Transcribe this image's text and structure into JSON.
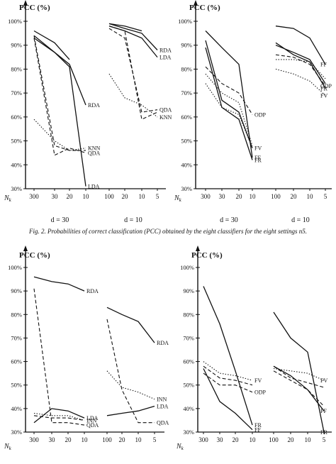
{
  "caption": "Fig. 2.  Probabilities of correct classification (PCC) obtained by the eight classifiers for the eight settings n5.",
  "chart_data": [
    {
      "type": "line",
      "id": "top-left",
      "ylabel": "PCC (%)",
      "xlabel": "N_k",
      "yticks": [
        "30%",
        "40%",
        "50%",
        "60%",
        "70%",
        "80%",
        "90%",
        "100%"
      ],
      "ylim": [
        30,
        100
      ],
      "panels": [
        {
          "label": "d = 30",
          "categories": [
            "300",
            "30",
            "20",
            "10"
          ],
          "series": [
            {
              "name": "",
              "style": "solid",
              "values": [
                96,
                91,
                84,
                null
              ]
            },
            {
              "name": "RDA",
              "style": "solid",
              "values": [
                94,
                87,
                82,
                65
              ]
            },
            {
              "name": "LDA",
              "style": "solid",
              "values": [
                93,
                87,
                81,
                31
              ]
            },
            {
              "name": "",
              "style": "dashed",
              "values": [
                94,
                48,
                46,
                46
              ]
            },
            {
              "name": "QDA",
              "style": "dashed",
              "values": [
                93,
                44,
                47,
                45
              ]
            },
            {
              "name": "KNN",
              "style": "dotted",
              "values": [
                59,
                50,
                46,
                47
              ]
            }
          ]
        },
        {
          "label": "d = 10",
          "categories": [
            "100",
            "20",
            "10",
            "5"
          ],
          "series": [
            {
              "name": "",
              "style": "solid",
              "values": [
                99,
                98,
                96,
                null
              ]
            },
            {
              "name": "RDA",
              "style": "solid",
              "values": [
                99,
                97,
                95,
                88
              ]
            },
            {
              "name": "LDA",
              "style": "solid",
              "values": [
                98,
                96,
                93,
                85
              ]
            },
            {
              "name": "",
              "style": "dashed",
              "values": [
                98,
                96,
                59,
                62
              ]
            },
            {
              "name": "QDA",
              "style": "dashed",
              "values": [
                97,
                93,
                62,
                63
              ]
            },
            {
              "name": "KNN",
              "style": "dotted",
              "values": [
                78,
                68,
                65,
                60
              ]
            }
          ]
        }
      ]
    },
    {
      "type": "line",
      "id": "top-right",
      "ylabel": "PCC (%)",
      "xlabel": "N_k",
      "yticks": [
        "30%",
        "40%",
        "50%",
        "60%",
        "70%",
        "80%",
        "90%",
        "100%"
      ],
      "ylim": [
        30,
        100
      ],
      "panels": [
        {
          "label": "d = 30",
          "categories": [
            "300",
            "30",
            "20",
            "10"
          ],
          "series": [
            {
              "name": "FF",
              "style": "solid",
              "values": [
                96,
                89,
                82,
                43
              ]
            },
            {
              "name": "FR",
              "style": "solid",
              "values": [
                89,
                64,
                59,
                42
              ]
            },
            {
              "name": "",
              "style": "solid",
              "values": [
                92,
                67,
                62,
                47
              ]
            },
            {
              "name": "FV",
              "style": "dotted",
              "values": [
                74,
                64,
                61,
                47
              ]
            },
            {
              "name": "ODP",
              "style": "dashed",
              "values": [
                81,
                74,
                70,
                61
              ]
            },
            {
              "name": "",
              "style": "dotted",
              "values": [
                78,
                70,
                66,
                48
              ]
            }
          ]
        },
        {
          "label": "d = 10",
          "categories": [
            "100",
            "20",
            "10",
            "5"
          ],
          "series": [
            {
              "name": "FF",
              "style": "solid",
              "values": [
                98,
                97,
                93,
                82
              ]
            },
            {
              "name": "FR",
              "style": "solid",
              "values": [
                91,
                86,
                83,
                72
              ]
            },
            {
              "name": "",
              "style": "solid",
              "values": [
                90,
                87,
                84,
                74
              ]
            },
            {
              "name": "ODP",
              "style": "dashed",
              "values": [
                86,
                85,
                82,
                73
              ]
            },
            {
              "name": "FV",
              "style": "dotted",
              "values": [
                80,
                78,
                75,
                69
              ]
            },
            {
              "name": "",
              "style": "dotted",
              "values": [
                84,
                84,
                83,
                76
              ]
            }
          ]
        }
      ]
    },
    {
      "type": "line",
      "id": "bottom-left",
      "ylabel": "PCC (%)",
      "xlabel": "N_k",
      "yticks": [
        "30%",
        "40%",
        "50%",
        "60%",
        "70%",
        "80%",
        "90%",
        "100%"
      ],
      "ylim": [
        30,
        100
      ],
      "panels": [
        {
          "label": "",
          "categories": [
            "300",
            "30",
            "20",
            "10"
          ],
          "series": [
            {
              "name": "RDA",
              "style": "solid",
              "values": [
                96,
                94,
                93,
                90
              ]
            },
            {
              "name": "QDA",
              "style": "dashed",
              "values": [
                91,
                34,
                34,
                33
              ]
            },
            {
              "name": "LDA",
              "style": "solid",
              "values": [
                34,
                40,
                39,
                36
              ]
            },
            {
              "name": "INN",
              "style": "dotted",
              "values": [
                38,
                37,
                37,
                35
              ]
            },
            {
              "name": "",
              "style": "dashed",
              "values": [
                37,
                36,
                36,
                35
              ]
            }
          ]
        },
        {
          "label": "",
          "categories": [
            "100",
            "20",
            "10",
            "5"
          ],
          "series": [
            {
              "name": "RDA",
              "style": "solid",
              "values": [
                83,
                80,
                77,
                68
              ]
            },
            {
              "name": "QDA",
              "style": "dashed",
              "values": [
                78,
                48,
                34,
                34
              ]
            },
            {
              "name": "INN",
              "style": "dotted",
              "values": [
                56,
                49,
                47,
                44
              ]
            },
            {
              "name": "LDA",
              "style": "solid",
              "values": [
                37,
                38,
                39,
                41
              ]
            }
          ]
        }
      ]
    },
    {
      "type": "line",
      "id": "bottom-right",
      "ylabel": "PCC (%)",
      "xlabel": "N_k",
      "yticks": [
        "30%",
        "40%",
        "50%",
        "60%",
        "70%",
        "80%",
        "90%",
        "100%"
      ],
      "ylim": [
        30,
        100
      ],
      "panels": [
        {
          "label": "",
          "categories": [
            "300",
            "30",
            "20",
            "10"
          ],
          "series": [
            {
              "name": "FR",
              "style": "solid",
              "values": [
                92,
                76,
                56,
                33
              ]
            },
            {
              "name": "FF",
              "style": "solid",
              "values": [
                57,
                43,
                38,
                31
              ]
            },
            {
              "name": "FV",
              "style": "dotted",
              "values": [
                60,
                55,
                54,
                52
              ]
            },
            {
              "name": "ODP",
              "style": "dashed",
              "values": [
                55,
                50,
                50,
                47
              ]
            },
            {
              "name": "",
              "style": "dashed",
              "values": [
                58,
                53,
                52,
                50
              ]
            }
          ]
        },
        {
          "label": "",
          "categories": [
            "100",
            "20",
            "10",
            "5"
          ],
          "series": [
            {
              "name": "FR",
              "style": "solid",
              "values": [
                81,
                70,
                64,
                30
              ]
            },
            {
              "name": "FF",
              "style": "solid",
              "values": [
                58,
                54,
                48,
                39
              ]
            },
            {
              "name": "FV",
              "style": "dotted",
              "values": [
                57,
                56,
                55,
                52
              ]
            },
            {
              "name": "",
              "style": "dashed",
              "values": [
                58,
                53,
                51,
                49
              ]
            },
            {
              "name": "",
              "style": "dashed",
              "values": [
                56,
                52,
                48,
                41
              ]
            }
          ]
        }
      ]
    }
  ]
}
